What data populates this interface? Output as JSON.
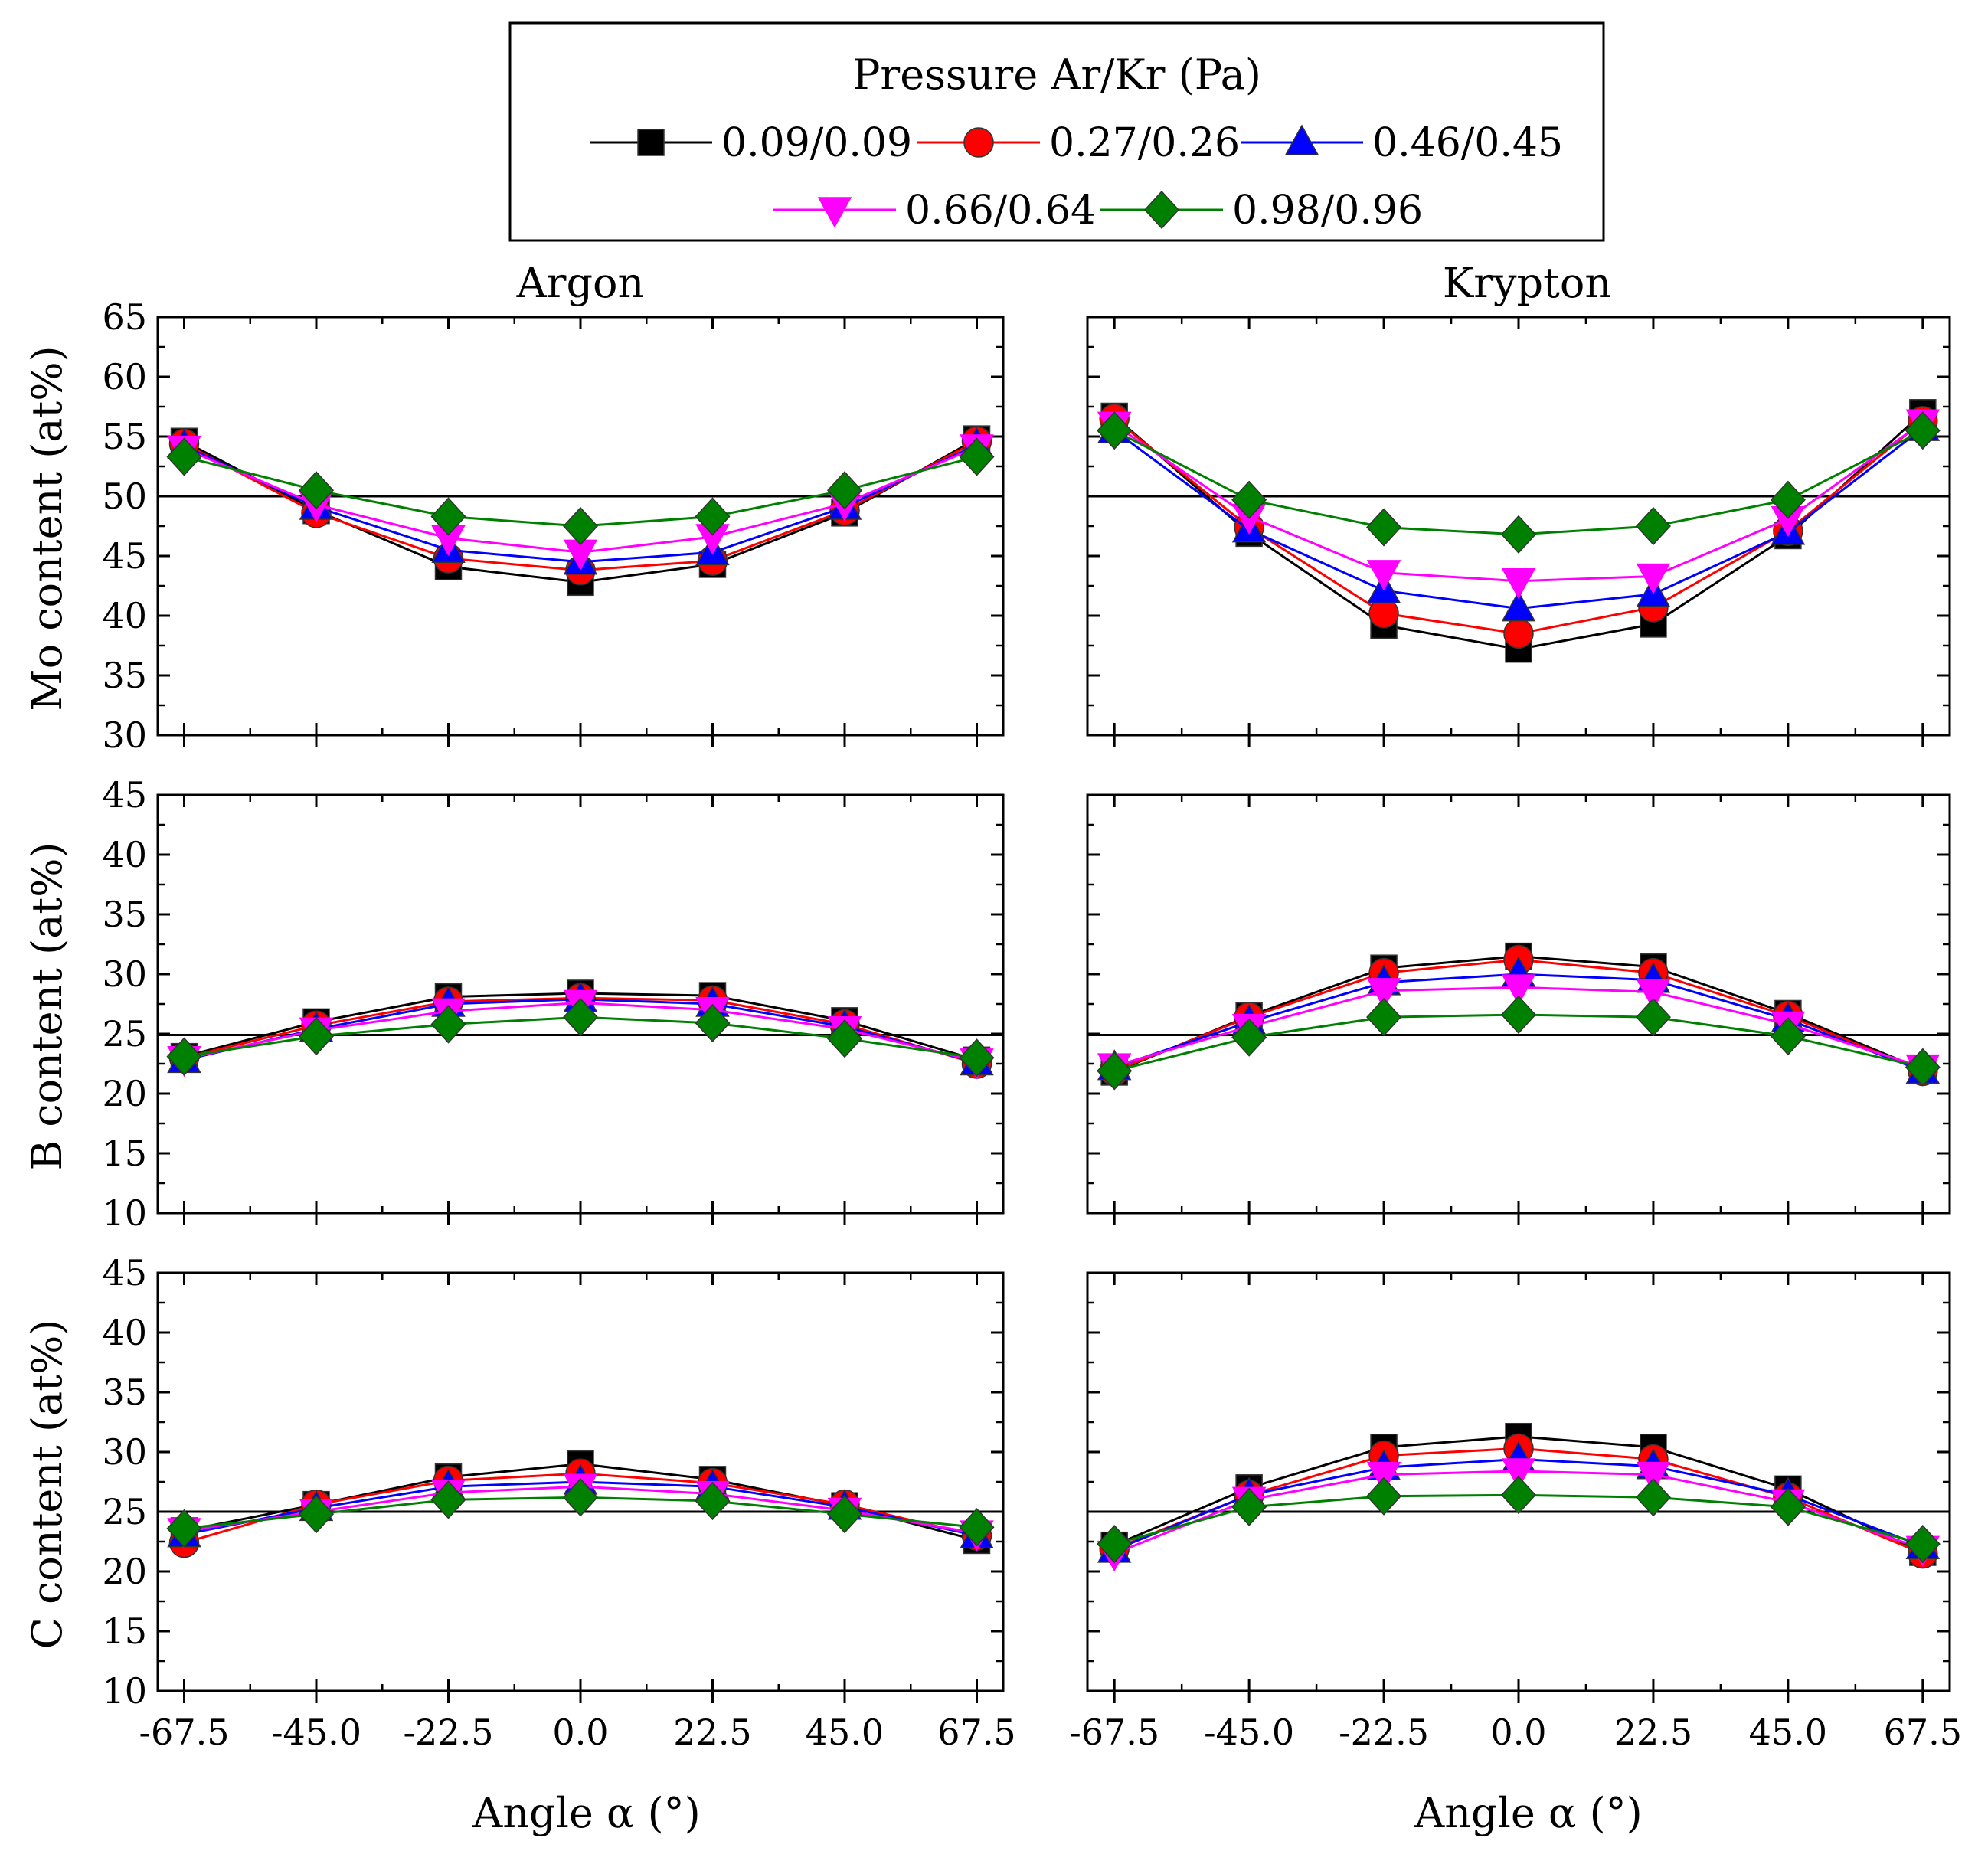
{
  "chart_data": {
    "type": "line",
    "legend": {
      "title": "Pressure Ar/Kr (Pa)",
      "position": "top-center"
    },
    "series": [
      {
        "key": "p1",
        "name": "0.09/0.09",
        "color": "#000000",
        "marker": "square"
      },
      {
        "key": "p2",
        "name": "0.27/0.26",
        "color": "#ff0000",
        "marker": "circle"
      },
      {
        "key": "p3",
        "name": "0.46/0.45",
        "color": "#0000ff",
        "marker": "triangle-up"
      },
      {
        "key": "p4",
        "name": "0.66/0.64",
        "color": "#ff00ff",
        "marker": "triangle-down"
      },
      {
        "key": "p5",
        "name": "0.98/0.96",
        "color": "#008000",
        "marker": "diamond"
      }
    ],
    "columns": [
      {
        "title": "Argon"
      },
      {
        "title": "Krypton"
      }
    ],
    "rows": [
      {
        "ylabel": "Mo content (at%)",
        "ylim": [
          30,
          65
        ],
        "yticks": [
          "30",
          "35",
          "40",
          "45",
          "50",
          "55",
          "60",
          "65"
        ],
        "ref_line": 50
      },
      {
        "ylabel": "B content (at%)",
        "ylim": [
          10,
          45
        ],
        "yticks": [
          "10",
          "15",
          "20",
          "25",
          "30",
          "35",
          "40",
          "45"
        ],
        "ref_line": 24.9
      },
      {
        "ylabel": "C content (at%)",
        "ylim": [
          10,
          45
        ],
        "yticks": [
          "10",
          "15",
          "20",
          "25",
          "30",
          "35",
          "40",
          "45"
        ],
        "ref_line": 25
      }
    ],
    "xlabel": "Angle α (°)",
    "x": [
      -67.5,
      -45.0,
      -22.5,
      0.0,
      22.5,
      45.0,
      67.5
    ],
    "xticks": [
      "-67.5",
      "-45.0",
      "-22.5",
      "0.0",
      "22.5",
      "45.0",
      "67.5"
    ],
    "xlim": [
      -72,
      72
    ],
    "panels": [
      {
        "row": 0,
        "col": 0,
        "values": {
          "p1": [
            54.6,
            48.8,
            44.1,
            42.8,
            44.3,
            48.6,
            54.8
          ],
          "p2": [
            54.4,
            48.6,
            44.8,
            43.8,
            44.6,
            48.8,
            54.6
          ],
          "p3": [
            54.2,
            49.1,
            45.5,
            44.5,
            45.3,
            49.1,
            54.3
          ],
          "p4": [
            54.0,
            49.3,
            46.5,
            45.3,
            46.6,
            49.4,
            54.1
          ],
          "p5": [
            53.3,
            50.5,
            48.3,
            47.5,
            48.3,
            50.5,
            53.3
          ]
        }
      },
      {
        "row": 0,
        "col": 1,
        "values": {
          "p1": [
            56.7,
            46.9,
            39.2,
            37.2,
            39.3,
            46.7,
            57.0
          ],
          "p2": [
            56.5,
            47.4,
            40.2,
            38.5,
            40.7,
            47.1,
            56.3
          ],
          "p3": [
            55.5,
            47.2,
            42.1,
            40.6,
            41.8,
            47.0,
            55.7
          ],
          "p4": [
            56.0,
            48.3,
            43.6,
            42.9,
            43.3,
            48.1,
            56.2
          ],
          "p5": [
            55.5,
            49.7,
            47.4,
            46.8,
            47.5,
            49.7,
            55.5
          ]
        }
      },
      {
        "row": 1,
        "col": 0,
        "values": {
          "p1": [
            23.1,
            26.0,
            28.1,
            28.4,
            28.2,
            26.1,
            22.8
          ],
          "p2": [
            23.0,
            25.7,
            27.7,
            28.0,
            27.8,
            25.8,
            22.5
          ],
          "p3": [
            22.8,
            25.4,
            27.5,
            27.9,
            27.5,
            25.6,
            22.6
          ],
          "p4": [
            22.9,
            25.3,
            26.9,
            27.6,
            27.0,
            25.4,
            22.7
          ],
          "p5": [
            23.1,
            24.8,
            25.8,
            26.4,
            25.9,
            24.6,
            23.0
          ]
        }
      },
      {
        "row": 1,
        "col": 1,
        "values": {
          "p1": [
            21.8,
            26.5,
            30.5,
            31.5,
            30.6,
            26.7,
            22.0
          ],
          "p2": [
            21.9,
            26.4,
            30.1,
            31.2,
            30.1,
            26.5,
            21.9
          ],
          "p3": [
            22.2,
            26.0,
            29.3,
            30.0,
            29.5,
            26.2,
            21.9
          ],
          "p4": [
            22.3,
            25.6,
            28.6,
            28.9,
            28.5,
            25.8,
            22.2
          ],
          "p5": [
            21.9,
            24.7,
            26.4,
            26.6,
            26.4,
            24.8,
            22.2
          ]
        }
      },
      {
        "row": 2,
        "col": 0,
        "values": {
          "p1": [
            23.4,
            25.6,
            27.9,
            29.0,
            27.7,
            25.5,
            22.6
          ],
          "p2": [
            22.4,
            25.6,
            27.6,
            28.2,
            27.4,
            25.6,
            23.0
          ],
          "p3": [
            23.1,
            25.3,
            27.1,
            27.5,
            27.1,
            25.4,
            23.0
          ],
          "p4": [
            23.4,
            25.0,
            26.6,
            27.1,
            26.5,
            25.1,
            23.2
          ],
          "p5": [
            23.6,
            24.8,
            26.0,
            26.2,
            25.9,
            24.8,
            23.7
          ]
        }
      },
      {
        "row": 2,
        "col": 1,
        "values": {
          "p1": [
            22.2,
            27.0,
            30.4,
            31.3,
            30.4,
            26.9,
            21.6
          ],
          "p2": [
            21.9,
            26.4,
            29.7,
            30.3,
            29.4,
            26.2,
            21.5
          ],
          "p3": [
            21.8,
            26.4,
            28.7,
            29.4,
            28.8,
            26.4,
            22.1
          ],
          "p4": [
            21.5,
            26.0,
            28.1,
            28.4,
            28.1,
            25.8,
            21.9
          ],
          "p5": [
            22.3,
            25.4,
            26.3,
            26.4,
            26.2,
            25.4,
            22.3
          ]
        }
      }
    ]
  }
}
